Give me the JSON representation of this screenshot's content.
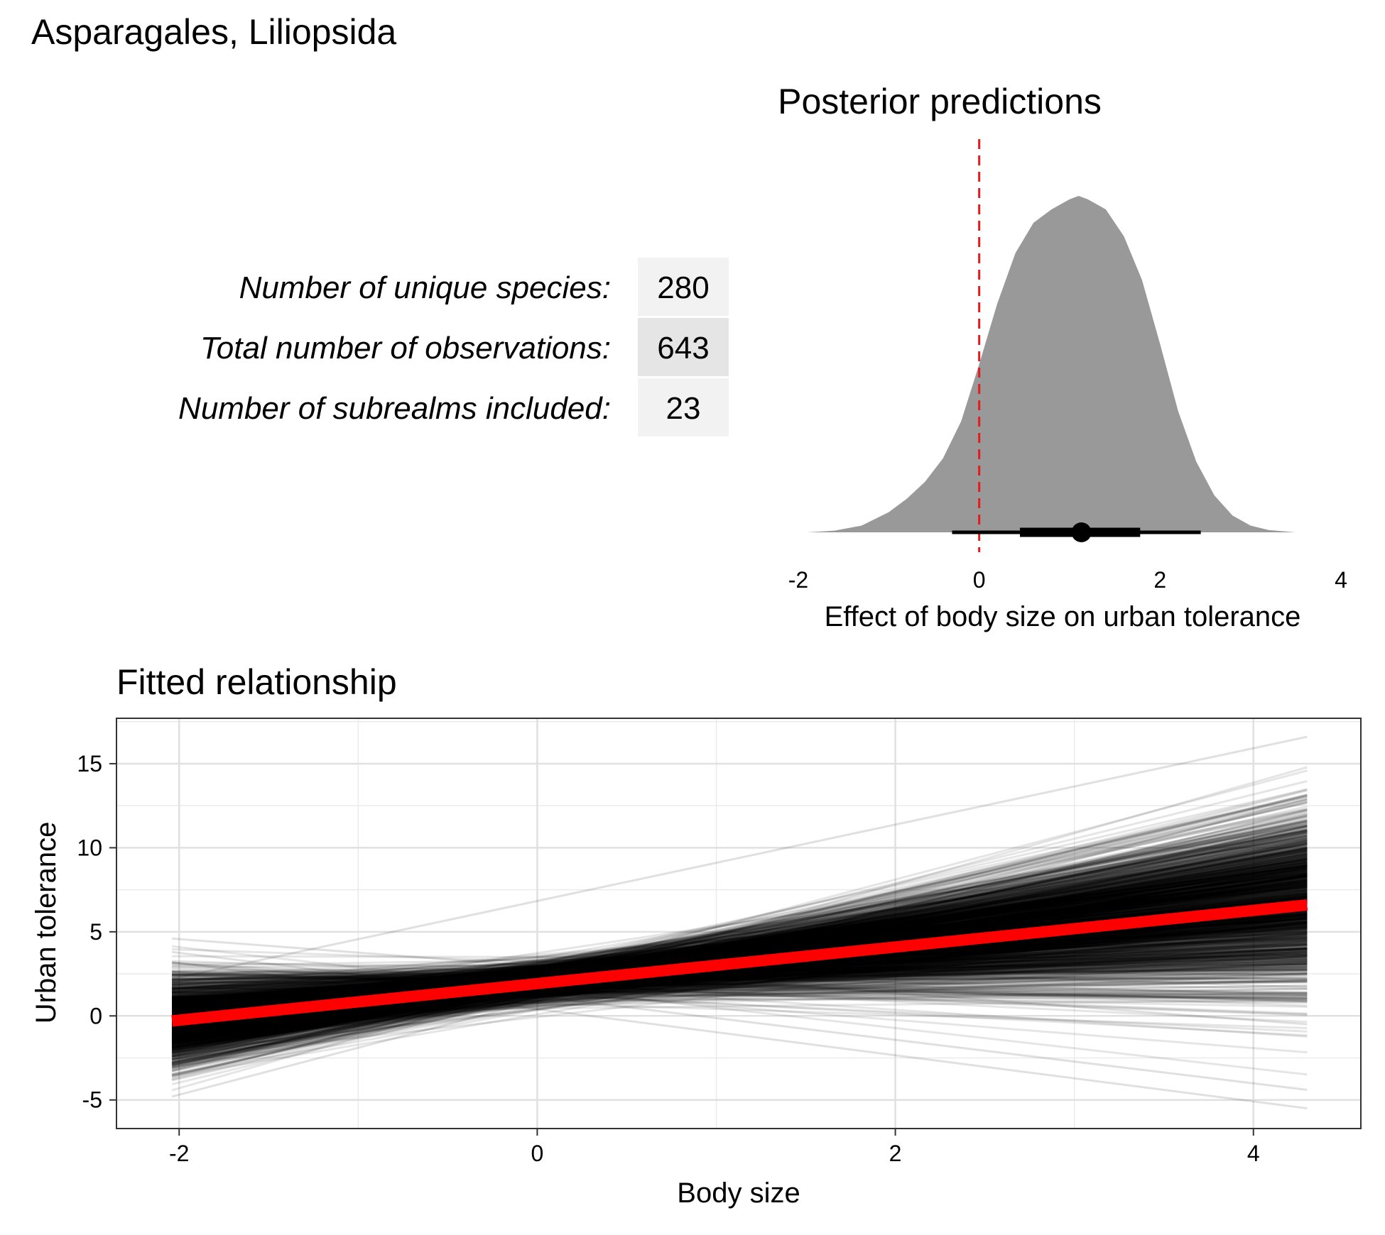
{
  "figure": {
    "title": "Asparagales, Liliopsida"
  },
  "stats": {
    "rows": [
      {
        "label": "Number of unique species:",
        "value": "280"
      },
      {
        "label": "Total number of observations:",
        "value": "643"
      },
      {
        "label": "Number of subrealms included:",
        "value": "23"
      }
    ]
  },
  "chart_data": [
    {
      "type": "area",
      "title": "Posterior predictions",
      "xlabel": "Effect of body size on urban tolerance",
      "ylabel": "",
      "xlim": [
        -2,
        4
      ],
      "x_ticks": [
        "-2",
        "0",
        "2",
        "4"
      ],
      "grid": false,
      "reference_line": {
        "x": 0,
        "style": "dashed",
        "color": "#e41a1c"
      },
      "density": {
        "x": [
          -1.9,
          -1.6,
          -1.3,
          -1.0,
          -0.8,
          -0.6,
          -0.4,
          -0.2,
          0.0,
          0.2,
          0.4,
          0.6,
          0.8,
          1.0,
          1.1,
          1.2,
          1.4,
          1.6,
          1.8,
          2.0,
          2.2,
          2.4,
          2.6,
          2.8,
          3.0,
          3.2,
          3.5
        ],
        "density": [
          0.0,
          0.005,
          0.02,
          0.06,
          0.1,
          0.15,
          0.22,
          0.33,
          0.5,
          0.68,
          0.83,
          0.92,
          0.96,
          0.99,
          1.0,
          0.99,
          0.96,
          0.88,
          0.75,
          0.56,
          0.36,
          0.21,
          0.11,
          0.05,
          0.02,
          0.007,
          0.0
        ]
      },
      "point_estimate": 1.13,
      "interval_inner": [
        0.45,
        1.78
      ],
      "interval_outer": [
        -0.3,
        2.45
      ],
      "fill_color": "#999999"
    },
    {
      "type": "line",
      "title": "Fitted relationship",
      "xlabel": "Body size",
      "ylabel": "Urban tolerance",
      "xlim": [
        -2.35,
        4.6
      ],
      "ylim": [
        -6.7,
        17.7
      ],
      "x_ticks": [
        -2,
        0,
        2,
        4
      ],
      "y_ticks": [
        -5,
        0,
        5,
        10,
        15
      ],
      "x_range": [
        -2.04,
        4.3
      ],
      "grid": true,
      "posterior_draws": {
        "count": 1500,
        "color": "#000000",
        "intercept_mean": 2.0,
        "intercept_sd": 0.55,
        "slope_mean": 1.13,
        "slope_sd": 0.58
      },
      "posterior_extremes": [
        {
          "y_start": 4.6,
          "y_end": -0.5
        },
        {
          "y_start": 2.2,
          "y_end": 16.6
        },
        {
          "y_start": -4.8,
          "y_end": 12.9
        },
        {
          "y_start": 3.2,
          "y_end": -5.5
        },
        {
          "y_start": 3.8,
          "y_end": -4.4
        }
      ],
      "series": [
        {
          "x": [
            -2.04,
            4.3
          ],
          "y": [
            -0.3,
            6.6
          ],
          "color": "#ff0000"
        }
      ]
    }
  ]
}
